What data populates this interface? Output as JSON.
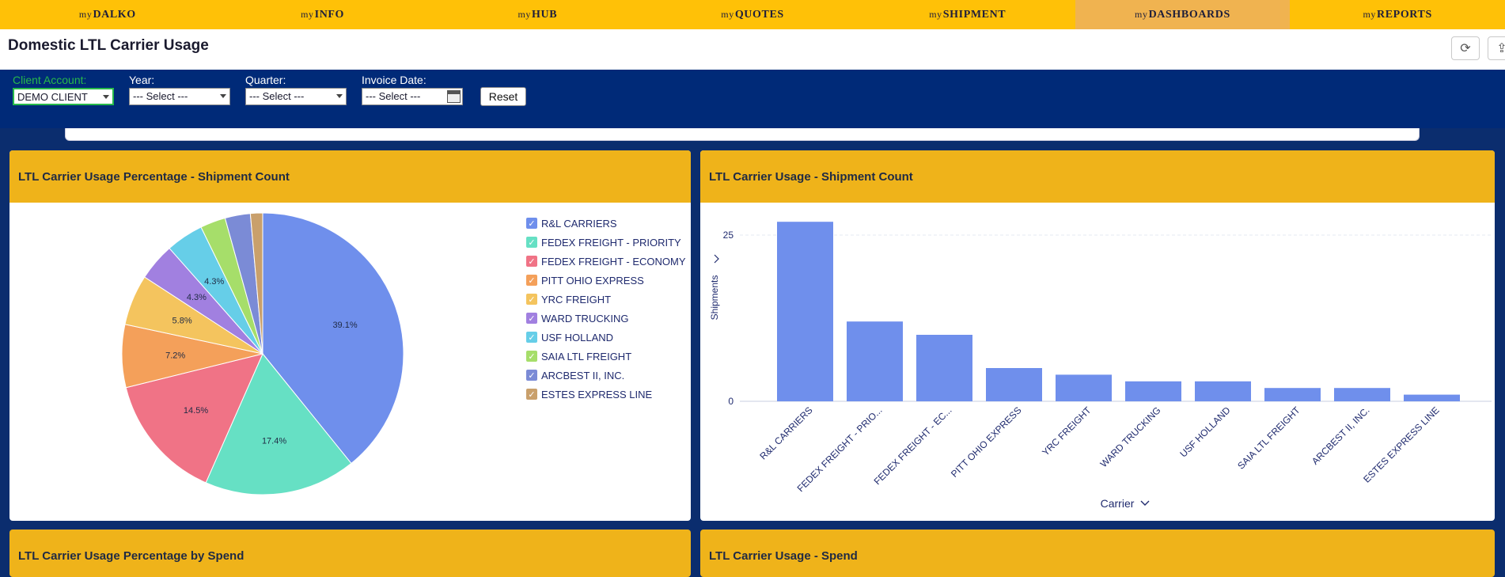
{
  "nav": [
    {
      "my": "my",
      "label": "DALKO",
      "active": false
    },
    {
      "my": "my",
      "label": "INFO",
      "active": false
    },
    {
      "my": "my",
      "label": "HUB",
      "active": false
    },
    {
      "my": "my",
      "label": "QUOTES",
      "active": false
    },
    {
      "my": "my",
      "label": "SHIPMENT",
      "active": false
    },
    {
      "my": "my",
      "label": "DASHBOARDS",
      "active": true
    },
    {
      "my": "my",
      "label": "REPORTS",
      "active": false
    }
  ],
  "title": "Domestic LTL Carrier Usage",
  "toolbar": {
    "refresh_icon": "refresh-icon",
    "share_icon": "share-icon"
  },
  "filters": {
    "client_label": "Client Account:",
    "client_value": "DEMO CLIENT",
    "year_label": "Year:",
    "year_value": "--- Select ---",
    "quarter_label": "Quarter:",
    "quarter_value": "--- Select ---",
    "invoice_label": "Invoice Date:",
    "invoice_value": "--- Select ---",
    "reset_label": "Reset"
  },
  "panels": {
    "pie_title": "LTL Carrier Usage Percentage - Shipment Count",
    "bar_title": "LTL Carrier Usage - Shipment Count",
    "spend_pie_title": "LTL Carrier Usage Percentage by Spend",
    "spend_bar_title": "LTL Carrier Usage - Spend"
  },
  "colors": [
    "#6f8fec",
    "#66e0c4",
    "#f07386",
    "#f4a05a",
    "#f4c45e",
    "#a180e0",
    "#66cee8",
    "#a6de6a",
    "#7b8bd6",
    "#c9a06c"
  ],
  "chart_data": [
    {
      "type": "pie",
      "title": "LTL Carrier Usage Percentage - Shipment Count",
      "categories": [
        "R&L CARRIERS",
        "FEDEX FREIGHT - PRIORITY",
        "FEDEX FREIGHT - ECONOMY",
        "PITT OHIO EXPRESS",
        "YRC FREIGHT",
        "WARD TRUCKING",
        "USF HOLLAND",
        "SAIA LTL FREIGHT",
        "ARCBEST II, INC.",
        "ESTES EXPRESS LINE"
      ],
      "values": [
        39.1,
        17.4,
        14.5,
        7.2,
        5.8,
        4.3,
        4.3,
        2.9,
        2.9,
        1.4
      ],
      "labels": [
        "39.1%",
        "17.4%",
        "14.5%",
        "7.2%",
        "5.8%",
        "4.3%",
        "4.3%",
        "",
        "",
        ""
      ],
      "legend": "right"
    },
    {
      "type": "bar",
      "title": "LTL Carrier Usage - Shipment Count",
      "categories": [
        "R&L CARRIERS",
        "FEDEX FREIGHT - PRIO...",
        "FEDEX FREIGHT - EC...",
        "PITT OHIO EXPRESS",
        "YRC FREIGHT",
        "WARD TRUCKING",
        "USF HOLLAND",
        "SAIA LTL FREIGHT",
        "ARCBEST II, INC.",
        "ESTES EXPRESS LINE"
      ],
      "values": [
        27,
        12,
        10,
        5,
        4,
        3,
        3,
        2,
        2,
        1
      ],
      "xlabel": "Carrier",
      "ylabel": "Shipments",
      "yticks": [
        0,
        25
      ],
      "ylim": [
        0,
        27.5
      ],
      "grid": true
    }
  ]
}
